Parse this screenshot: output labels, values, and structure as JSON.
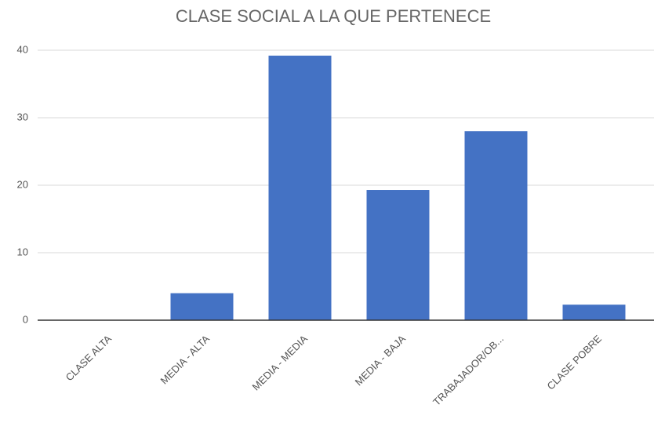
{
  "chart_data": {
    "type": "bar",
    "title": "CLASE SOCIAL A LA QUE PERTENECE",
    "categories": [
      "CLASE ALTA",
      "MEDIA - ALTA",
      "MEDIA - MEDIA",
      "MEDIA - BAJA",
      "TRABAJADOR/OB...",
      "CLASE POBRE"
    ],
    "values": [
      0,
      4,
      39.2,
      19.3,
      28,
      2.3
    ],
    "color": "#4472c4",
    "ylim": [
      0,
      40
    ],
    "yticks": [
      0,
      10,
      20,
      30,
      40
    ],
    "grid": true
  }
}
